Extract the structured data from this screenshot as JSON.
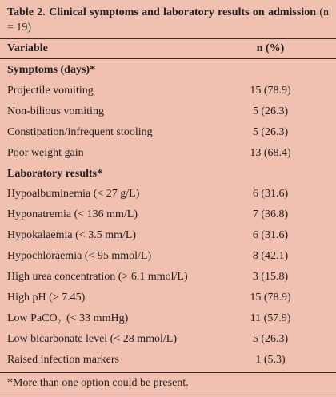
{
  "header": {
    "title": "Table 2. Clinical symptoms and laboratory results on admission",
    "title_note": "(n = 19)"
  },
  "table": {
    "columns": [
      "Variable",
      "n (%)"
    ],
    "rows": [
      {
        "section": "Symptoms (days)*"
      },
      {
        "variable": "Projectile vomiting",
        "n": "15 (78.9)"
      },
      {
        "variable": "Non-bilious vomiting",
        "n": "5 (26.3)"
      },
      {
        "variable": "Constipation/infrequent stooling",
        "n": "5 (26.3)"
      },
      {
        "variable": "Poor weight gain",
        "n": "13 (68.4)"
      },
      {
        "section": "Laboratory results*"
      },
      {
        "variable": "Hypoalbuminemia (< 27 g/L)",
        "n": "6 (31.6)"
      },
      {
        "variable": "Hyponatremia (< 136 mm/L)",
        "n": "7 (36.8)"
      },
      {
        "variable": "Hypokalaemia (< 3.5 mm/L)",
        "n": "6 (31.6)"
      },
      {
        "variable": "Hypochloraemia (< 95 mmol/L)",
        "n": "8 (42.1)"
      },
      {
        "variable": "High urea concentration (> 6.1 mmol/L)",
        "n": "3 (15.8)"
      },
      {
        "variable": "High pH (> 7.45)",
        "n": "15 (78.9)"
      },
      {
        "variable": "Low PaCO",
        "subscript": "2",
        "variable_rest": "(< 33 mmHg)",
        "n": "11 (57.9)"
      },
      {
        "variable": "Low bicarbonate level (< 28 mmol/L)",
        "n": "5 (26.3)"
      },
      {
        "variable": "Raised infection markers",
        "n": "1 (5.3)"
      }
    ]
  },
  "footnote": "*More than one option could be present."
}
